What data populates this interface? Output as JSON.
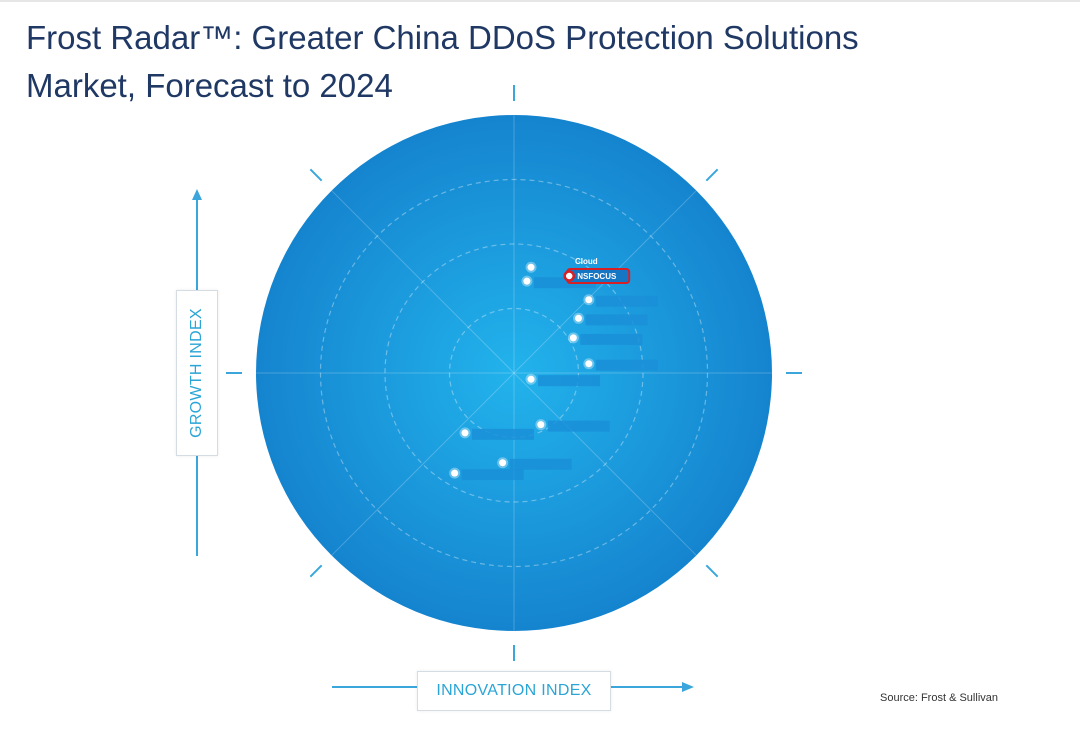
{
  "title": {
    "line1": "Frost Radar™: Greater China DDoS Protection Solutions",
    "line2": "Market, Forecast to 2024"
  },
  "colors": {
    "title": "#1f3864",
    "circle_center": "#22b3ec",
    "circle_edge": "#1584cf",
    "axis_label": "#2aa5d6",
    "arrow": "#3aa6dc",
    "highlight": "#d71f26",
    "redacted_label": "#1a8fd8"
  },
  "axis_labels": {
    "x": "INNOVATION INDEX",
    "y": "GROWTH INDEX"
  },
  "source": "Source: Frost & Sullivan",
  "chart_data": {
    "type": "scatter",
    "title": "Frost Radar™: Greater China DDoS Protection Solutions Market, Forecast to 2024",
    "xlabel": "INNOVATION INDEX",
    "ylabel": "GROWTH INDEX",
    "xlim": [
      -5,
      5
    ],
    "ylim": [
      -5,
      5
    ],
    "rings": 4,
    "grid": true,
    "points": [
      {
        "name": "Cloud",
        "x": 0.33,
        "y": 2.05,
        "label_shown": true,
        "highlight": false
      },
      {
        "name": "",
        "x": 0.25,
        "y": 1.78,
        "label_shown": false,
        "highlight": false
      },
      {
        "name": "NSFOCUS",
        "x": 1.07,
        "y": 1.88,
        "label_shown": true,
        "highlight": true
      },
      {
        "name": "",
        "x": 1.45,
        "y": 1.42,
        "label_shown": false,
        "highlight": false
      },
      {
        "name": "",
        "x": 1.25,
        "y": 1.06,
        "label_shown": false,
        "highlight": false
      },
      {
        "name": "",
        "x": 1.15,
        "y": 0.68,
        "label_shown": false,
        "highlight": false
      },
      {
        "name": "",
        "x": 1.45,
        "y": 0.18,
        "label_shown": false,
        "highlight": false
      },
      {
        "name": "",
        "x": 0.33,
        "y": -0.12,
        "label_shown": false,
        "highlight": false
      },
      {
        "name": "",
        "x": 0.52,
        "y": -1.0,
        "label_shown": false,
        "highlight": false
      },
      {
        "name": "",
        "x": -0.95,
        "y": -1.16,
        "label_shown": false,
        "highlight": false
      },
      {
        "name": "",
        "x": -0.22,
        "y": -1.74,
        "label_shown": false,
        "highlight": false
      },
      {
        "name": "",
        "x": -1.15,
        "y": -1.94,
        "label_shown": false,
        "highlight": false
      }
    ]
  }
}
